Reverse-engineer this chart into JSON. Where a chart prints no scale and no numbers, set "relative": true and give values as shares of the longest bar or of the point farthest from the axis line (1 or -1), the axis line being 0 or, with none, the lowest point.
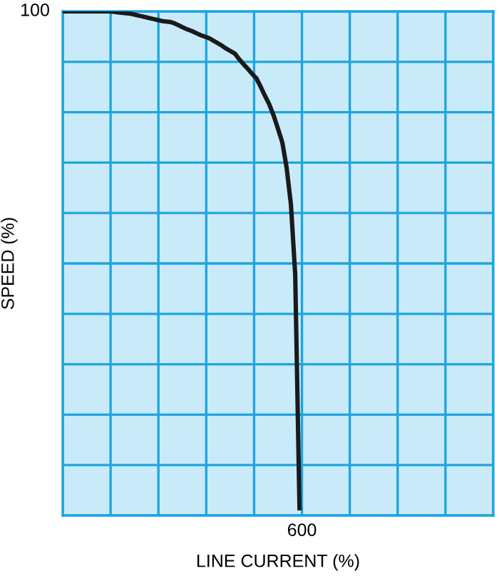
{
  "chart_data": {
    "type": "line",
    "relative": true,
    "xlabel": "LINE CURRENT (%)",
    "ylabel": "SPEED (%)",
    "categories": [
      null,
      null,
      null,
      null,
      null,
      null,
      null,
      null,
      null,
      null,
      null,
      null,
      null,
      null,
      null,
      null,
      null,
      null,
      null,
      null,
      null,
      null,
      null,
      null,
      null,
      null,
      null,
      null,
      null,
      null,
      null,
      null,
      null,
      null,
      null,
      null,
      null,
      null,
      null,
      null,
      null,
      null,
      null,
      null,
      null,
      null,
      null,
      null,
      null,
      null,
      null,
      null,
      null,
      null,
      null,
      null,
      null,
      null,
      null,
      null,
      null,
      null,
      null,
      null,
      null,
      null,
      null,
      null,
      null,
      null,
      null,
      null,
      null,
      null,
      null,
      null,
      null,
      null,
      null,
      null,
      null,
      null,
      null,
      null,
      null,
      null,
      null,
      null,
      null,
      null,
      null,
      null,
      null,
      null,
      null,
      null,
      null,
      null,
      null,
      null,
      null
    ],
    "series": [
      {
        "color": "#1a1a1a",
        "values": [
          1,
          1,
          1,
          1,
          1,
          1,
          1,
          1,
          1,
          1,
          1,
          1,
          0.999,
          0.998,
          0.997,
          0.996,
          0.995,
          0.993,
          0.991,
          0.989,
          0.987,
          0.985,
          0.983,
          0.981,
          0.98,
          0.979,
          0.976,
          0.972,
          0.968,
          0.964,
          0.961,
          0.957,
          0.953,
          0.95,
          0.947,
          0.942,
          0.937,
          0.932,
          0.926,
          0.921,
          0.916,
          0.905,
          0.895,
          0.886,
          0.876,
          0.867,
          0.85,
          0.832,
          0.815,
          0.793,
          0.767,
          0.74,
          0.69,
          0.617,
          0.477,
          0.01,
          null,
          null,
          null,
          null,
          null,
          null,
          null,
          null,
          null,
          null,
          null,
          null,
          null,
          null,
          null,
          null,
          null,
          null,
          null,
          null,
          null,
          null,
          null,
          null,
          null,
          null,
          null,
          null,
          null,
          null,
          null,
          null,
          null,
          null,
          null,
          null,
          null,
          null,
          null,
          null,
          null,
          null,
          null,
          null,
          null
        ]
      }
    ],
    "annotations": [
      "100",
      "600"
    ],
    "grid": true,
    "marker": "none",
    "line_style": "solid"
  }
}
